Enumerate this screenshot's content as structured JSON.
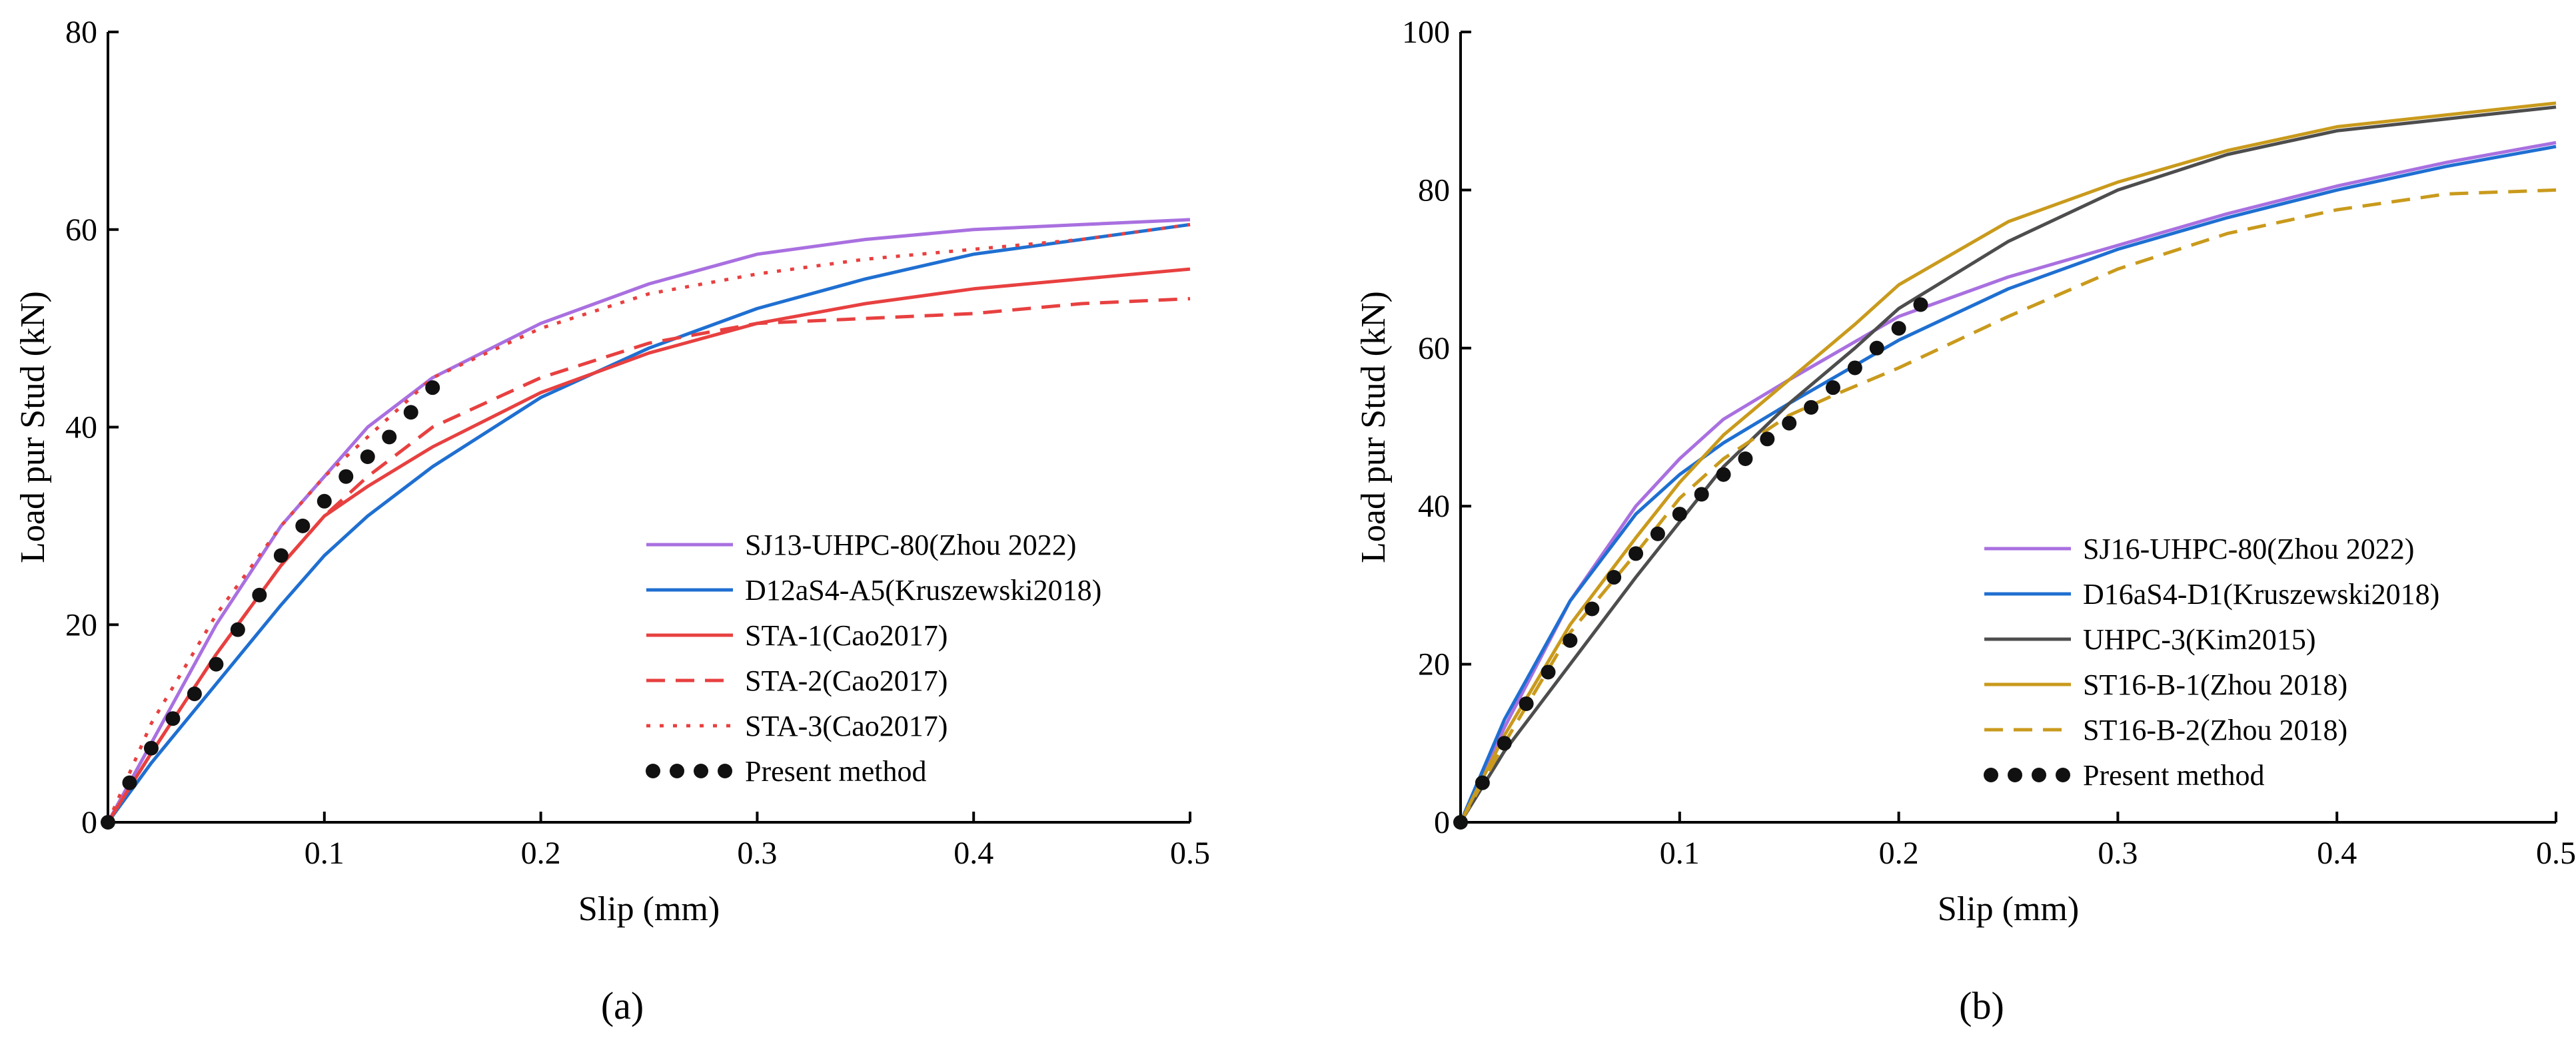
{
  "chart_data": [
    {
      "type": "line",
      "panel_label": "(a)",
      "xlabel": "Slip (mm)",
      "ylabel": "Load pur Stud (kN)",
      "xlim": [
        0,
        0.5
      ],
      "ylim": [
        0,
        80
      ],
      "xticks": [
        0.1,
        0.2,
        0.3,
        0.4,
        0.5
      ],
      "xtick_labels": [
        "0.1",
        "0.2",
        "0.3",
        "0.4",
        "0.5"
      ],
      "yticks": [
        0,
        20,
        40,
        60,
        80
      ],
      "ytick_labels": [
        "0",
        "20",
        "40",
        "60",
        "80"
      ],
      "legend_position": "bottom-right",
      "series": [
        {
          "name": "SJ13-UHPC-80(Zhou 2022)",
          "color": "#a970e0",
          "style": "solid",
          "x": [
            0,
            0.02,
            0.05,
            0.08,
            0.1,
            0.12,
            0.15,
            0.2,
            0.25,
            0.3,
            0.35,
            0.4,
            0.45,
            0.5
          ],
          "y": [
            0,
            8,
            20,
            30,
            35,
            40,
            45,
            50.5,
            54.5,
            57.5,
            59,
            60,
            60.5,
            61
          ]
        },
        {
          "name": "D12aS4-A5(Kruszewski2018)",
          "color": "#1f6fd1",
          "style": "solid",
          "x": [
            0,
            0.02,
            0.05,
            0.08,
            0.1,
            0.12,
            0.15,
            0.2,
            0.25,
            0.3,
            0.35,
            0.4,
            0.45,
            0.5
          ],
          "y": [
            0,
            6,
            14,
            22,
            27,
            31,
            36,
            43,
            48,
            52,
            55,
            57.5,
            59,
            60.5
          ]
        },
        {
          "name": "STA-1(Cao2017)",
          "color": "#e84040",
          "style": "solid",
          "x": [
            0,
            0.02,
            0.05,
            0.08,
            0.1,
            0.12,
            0.15,
            0.2,
            0.25,
            0.3,
            0.35,
            0.4,
            0.45,
            0.5
          ],
          "y": [
            0,
            7,
            17,
            26,
            31,
            34,
            38,
            43.5,
            47.5,
            50.5,
            52.5,
            54,
            55,
            56
          ]
        },
        {
          "name": "STA-2(Cao2017)",
          "color": "#e84040",
          "style": "dashed",
          "x": [
            0,
            0.02,
            0.05,
            0.08,
            0.1,
            0.12,
            0.15,
            0.2,
            0.25,
            0.3,
            0.35,
            0.4,
            0.45,
            0.5
          ],
          "y": [
            0,
            7,
            17,
            26,
            31,
            35,
            40,
            45,
            48.5,
            50.5,
            51,
            51.5,
            52.5,
            53
          ]
        },
        {
          "name": "STA-3(Cao2017)",
          "color": "#e84040",
          "style": "dotted",
          "x": [
            0,
            0.02,
            0.05,
            0.08,
            0.1,
            0.12,
            0.15,
            0.2,
            0.25,
            0.3,
            0.35,
            0.4,
            0.45,
            0.5
          ],
          "y": [
            0,
            10,
            21,
            30,
            35,
            39,
            45,
            50,
            53.5,
            55.5,
            57,
            58,
            59,
            60.5
          ]
        },
        {
          "name": "Present method",
          "color": "#111111",
          "style": "points",
          "x": [
            0,
            0.01,
            0.02,
            0.03,
            0.04,
            0.05,
            0.06,
            0.07,
            0.08,
            0.09,
            0.1,
            0.11,
            0.12,
            0.13,
            0.14,
            0.15
          ],
          "y": [
            0,
            4,
            7.5,
            10.5,
            13,
            16,
            19.5,
            23,
            27,
            30,
            32.5,
            35,
            37,
            39,
            41.5,
            44
          ]
        }
      ]
    },
    {
      "type": "line",
      "panel_label": "(b)",
      "xlabel": "Slip (mm)",
      "ylabel": "Load pur Stud (kN)",
      "xlim": [
        0,
        0.5
      ],
      "ylim": [
        0,
        100
      ],
      "xticks": [
        0.1,
        0.2,
        0.3,
        0.4,
        0.5
      ],
      "xtick_labels": [
        "0.1",
        "0.2",
        "0.3",
        "0.4",
        "0.5"
      ],
      "yticks": [
        0,
        20,
        40,
        60,
        80,
        100
      ],
      "ytick_labels": [
        "0",
        "20",
        "40",
        "60",
        "80",
        "100"
      ],
      "legend_position": "bottom-right",
      "series": [
        {
          "name": "SJ16-UHPC-80(Zhou 2022)",
          "color": "#a970e0",
          "style": "solid",
          "x": [
            0,
            0.02,
            0.05,
            0.08,
            0.1,
            0.12,
            0.15,
            0.2,
            0.25,
            0.3,
            0.35,
            0.4,
            0.45,
            0.5
          ],
          "y": [
            0,
            12,
            28,
            40,
            46,
            51,
            56,
            64,
            69,
            73,
            77,
            80.5,
            83.5,
            86
          ]
        },
        {
          "name": "D16aS4-D1(Kruszewski2018)",
          "color": "#1f6fd1",
          "style": "solid",
          "x": [
            0,
            0.02,
            0.05,
            0.08,
            0.1,
            0.12,
            0.15,
            0.2,
            0.25,
            0.3,
            0.35,
            0.4,
            0.45,
            0.5
          ],
          "y": [
            0,
            13,
            28,
            39,
            44,
            48,
            53,
            61,
            67.5,
            72.5,
            76.5,
            80,
            83,
            85.5
          ]
        },
        {
          "name": "UHPC-3(Kim2015)",
          "color": "#4d4d4d",
          "style": "solid",
          "x": [
            0,
            0.02,
            0.05,
            0.08,
            0.1,
            0.12,
            0.15,
            0.18,
            0.2,
            0.25,
            0.3,
            0.35,
            0.4,
            0.45,
            0.5
          ],
          "y": [
            0,
            9,
            20,
            31,
            38,
            45,
            53,
            60,
            65,
            73.5,
            80,
            84.5,
            87.5,
            89,
            90.5
          ]
        },
        {
          "name": "ST16-B-1(Zhou 2018)",
          "color": "#c99a1c",
          "style": "solid",
          "x": [
            0,
            0.02,
            0.05,
            0.08,
            0.1,
            0.12,
            0.15,
            0.18,
            0.2,
            0.25,
            0.3,
            0.35,
            0.4,
            0.45,
            0.5
          ],
          "y": [
            0,
            11,
            25,
            36,
            43,
            49,
            56,
            63,
            68,
            76,
            81,
            85,
            88,
            89.5,
            91
          ]
        },
        {
          "name": "ST16-B-2(Zhou 2018)",
          "color": "#c99a1c",
          "style": "dashed",
          "x": [
            0,
            0.02,
            0.05,
            0.08,
            0.1,
            0.12,
            0.15,
            0.17,
            0.2,
            0.25,
            0.3,
            0.35,
            0.4,
            0.45,
            0.5
          ],
          "y": [
            0,
            10,
            24,
            34,
            41,
            46,
            51.5,
            54,
            57.5,
            64,
            70,
            74.5,
            77.5,
            79.5,
            80
          ]
        },
        {
          "name": "Present method",
          "color": "#111111",
          "style": "points",
          "x": [
            0,
            0.01,
            0.02,
            0.03,
            0.04,
            0.05,
            0.06,
            0.07,
            0.08,
            0.09,
            0.1,
            0.11,
            0.12,
            0.13,
            0.14,
            0.15,
            0.16,
            0.17,
            0.18,
            0.19,
            0.2,
            0.21
          ],
          "y": [
            0,
            5,
            10,
            15,
            19,
            23,
            27,
            31,
            34,
            36.5,
            39,
            41.5,
            44,
            46,
            48.5,
            50.5,
            52.5,
            55,
            57.5,
            60,
            62.5,
            65.5
          ]
        }
      ]
    }
  ]
}
